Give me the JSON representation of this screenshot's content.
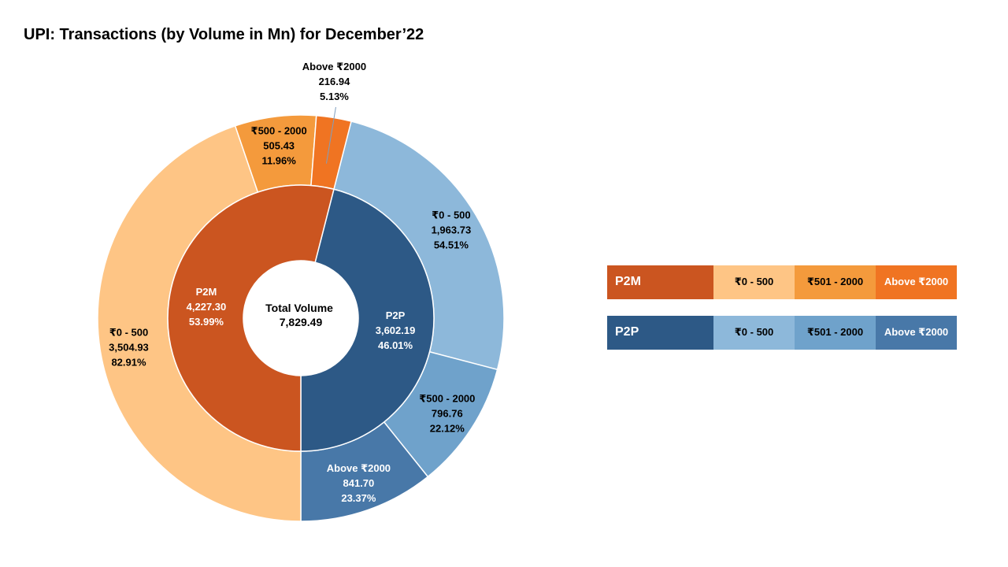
{
  "title": "UPI: Transactions (by Volume in Mn) for December’22",
  "colors": {
    "p2m_parent": "#cb5520",
    "p2m_band1": "#fec585",
    "p2m_band2": "#f49a3c",
    "p2m_band3": "#f07422",
    "p2p_parent": "#2d5986",
    "p2p_band1": "#8db8da",
    "p2p_band2": "#6fa2cb",
    "p2p_band3": "#4878a8"
  },
  "chart_data": {
    "type": "sunburst",
    "center": {
      "label": "Total Volume",
      "value": "7,829.49"
    },
    "inner": [
      {
        "name": "P2M",
        "value": 4227.3,
        "value_label": "4,227.30",
        "pct_label": "53.99%",
        "color_key": "p2m_parent"
      },
      {
        "name": "P2P",
        "value": 3602.19,
        "value_label": "3,602.19",
        "pct_label": "46.01%",
        "color_key": "p2p_parent"
      }
    ],
    "outer": [
      {
        "parent": "P2P",
        "name": "₹0 - 500",
        "value": 1963.73,
        "value_label": "1,963.73",
        "pct_label": "54.51%",
        "color_key": "p2p_band1"
      },
      {
        "parent": "P2P",
        "name": "₹500 - 2000",
        "value": 796.76,
        "value_label": "796.76",
        "pct_label": "22.12%",
        "color_key": "p2p_band2"
      },
      {
        "parent": "P2P",
        "name": "Above ₹2000",
        "value": 841.7,
        "value_label": "841.70",
        "pct_label": "23.37%",
        "color_key": "p2p_band3"
      },
      {
        "parent": "P2M",
        "name": "₹0 - 500",
        "value": 3504.93,
        "value_label": "3,504.93",
        "pct_label": "82.91%",
        "color_key": "p2m_band1"
      },
      {
        "parent": "P2M",
        "name": "₹500 - 2000",
        "value": 505.43,
        "value_label": "505.43",
        "pct_label": "11.96%",
        "color_key": "p2m_band2"
      },
      {
        "parent": "P2M",
        "name": "Above ₹2000",
        "value": 216.94,
        "value_label": "216.94",
        "pct_label": "5.13%",
        "color_key": "p2m_band3"
      }
    ]
  },
  "legend": {
    "p2m": {
      "head": "P2M",
      "items": [
        "₹0 - 500",
        "₹501 - 2000",
        "Above ₹2000"
      ]
    },
    "p2p": {
      "head": "P2P",
      "items": [
        "₹0 - 500",
        "₹501 - 2000",
        "Above ₹2000"
      ]
    }
  }
}
